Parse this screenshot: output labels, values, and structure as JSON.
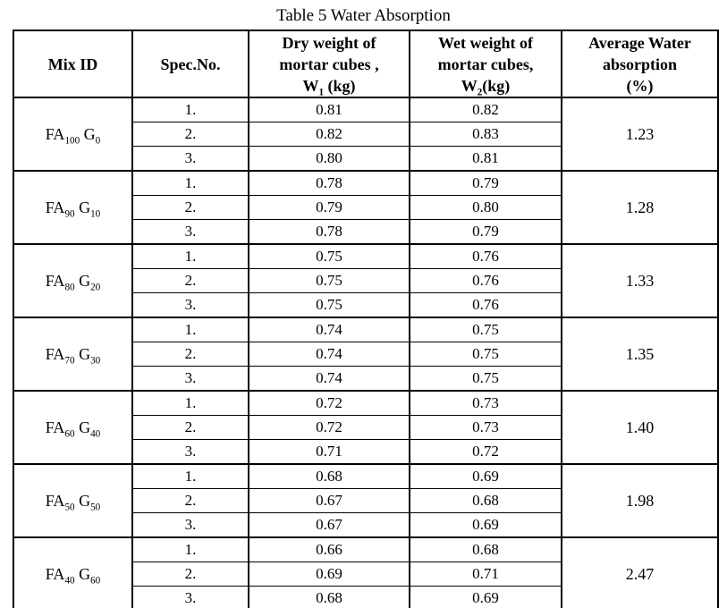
{
  "page": {
    "background": "#ffffff",
    "text_color": "#000000",
    "border_color": "#000000"
  },
  "title": "Table 5 Water Absorption",
  "table": {
    "headers": {
      "mix_id": "Mix ID",
      "spec_no": "Spec.No.",
      "dry": {
        "line1": "Dry weight  of",
        "line2": "mortar cubes ,",
        "w_base": "W",
        "w_sub": "1",
        "w_rest": " (kg)"
      },
      "wet": {
        "line1": "Wet weight of",
        "line2": "mortar cubes,",
        "w_base": "W",
        "w_sub": "2",
        "w_rest": "(kg)"
      },
      "avg": {
        "line1": "Average Water",
        "line2": "absorption",
        "line3": "(%)"
      }
    },
    "groups": [
      {
        "mix": {
          "p1": "FA",
          "s1": "100",
          "p2": " G",
          "s2": "0"
        },
        "specs": [
          {
            "no": "1.",
            "dry": "0.81",
            "wet": "0.82"
          },
          {
            "no": "2.",
            "dry": "0.82",
            "wet": "0.83"
          },
          {
            "no": "3.",
            "dry": "0.80",
            "wet": "0.81"
          }
        ],
        "avg": "1.23"
      },
      {
        "mix": {
          "p1": "FA",
          "s1": "90",
          "p2": " G",
          "s2": "10"
        },
        "specs": [
          {
            "no": "1.",
            "dry": "0.78",
            "wet": "0.79"
          },
          {
            "no": "2.",
            "dry": "0.79",
            "wet": "0.80"
          },
          {
            "no": "3.",
            "dry": "0.78",
            "wet": "0.79"
          }
        ],
        "avg": "1.28"
      },
      {
        "mix": {
          "p1": "FA",
          "s1": "80",
          "p2": " G",
          "s2": "20"
        },
        "specs": [
          {
            "no": "1.",
            "dry": "0.75",
            "wet": "0.76"
          },
          {
            "no": "2.",
            "dry": "0.75",
            "wet": "0.76"
          },
          {
            "no": "3.",
            "dry": "0.75",
            "wet": "0.76"
          }
        ],
        "avg": "1.33"
      },
      {
        "mix": {
          "p1": "FA",
          "s1": "70",
          "p2": " G",
          "s2": "30"
        },
        "specs": [
          {
            "no": "1.",
            "dry": "0.74",
            "wet": "0.75"
          },
          {
            "no": "2.",
            "dry": "0.74",
            "wet": "0.75"
          },
          {
            "no": "3.",
            "dry": "0.74",
            "wet": "0.75"
          }
        ],
        "avg": "1.35"
      },
      {
        "mix": {
          "p1": "FA",
          "s1": "60",
          "p2": " G",
          "s2": "40"
        },
        "specs": [
          {
            "no": "1.",
            "dry": "0.72",
            "wet": "0.73"
          },
          {
            "no": "2.",
            "dry": "0.72",
            "wet": "0.73"
          },
          {
            "no": "3.",
            "dry": "0.71",
            "wet": "0.72"
          }
        ],
        "avg": "1.40"
      },
      {
        "mix": {
          "p1": "FA",
          "s1": "50",
          "p2": " G",
          "s2": "50"
        },
        "specs": [
          {
            "no": "1.",
            "dry": "0.68",
            "wet": "0.69"
          },
          {
            "no": "2.",
            "dry": "0.67",
            "wet": "0.68"
          },
          {
            "no": "3.",
            "dry": "0.67",
            "wet": "0.69"
          }
        ],
        "avg": "1.98"
      },
      {
        "mix": {
          "p1": "FA",
          "s1": "40",
          "p2": " G",
          "s2": "60"
        },
        "specs": [
          {
            "no": "1.",
            "dry": "0.66",
            "wet": "0.68"
          },
          {
            "no": "2.",
            "dry": "0.69",
            "wet": "0.71"
          },
          {
            "no": "3.",
            "dry": "0.68",
            "wet": "0.69"
          }
        ],
        "avg": "2.47"
      }
    ]
  }
}
